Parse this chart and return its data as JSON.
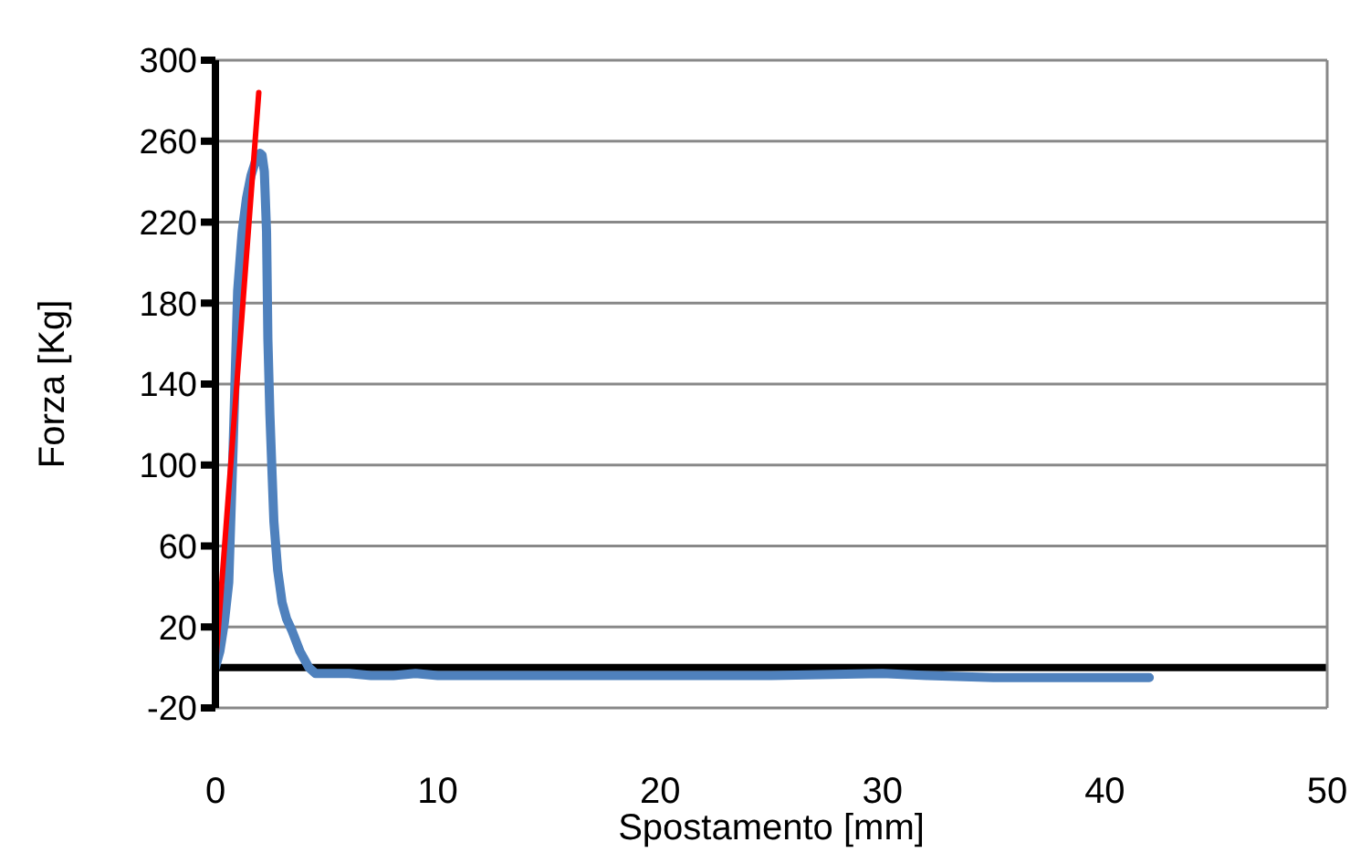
{
  "chart_data": {
    "type": "line",
    "xlabel": "Spostamento [mm]",
    "ylabel": "Forza [Kg]",
    "xlim": [
      0,
      50
    ],
    "xticks": [
      0,
      10,
      20,
      30,
      40,
      50
    ],
    "ylim": [
      -20,
      300
    ],
    "yticks": [
      -20,
      20,
      60,
      100,
      140,
      180,
      220,
      260,
      300
    ],
    "grid": "y",
    "legend": false,
    "marker": "none",
    "ref_lines": [
      {
        "axis": "y",
        "value": 0,
        "color": "#000000"
      }
    ],
    "series": [
      {
        "color": "#4f81bd",
        "x": [
          0,
          0.2,
          0.4,
          0.6,
          0.8,
          1.0,
          1.2,
          1.4,
          1.6,
          1.8,
          2.0,
          2.1,
          2.2,
          2.3,
          2.36,
          2.45,
          2.55,
          2.63,
          2.8,
          3.0,
          3.2,
          3.45,
          3.8,
          4.2,
          4.5,
          5,
          6,
          7,
          8,
          9,
          10,
          12,
          15,
          20,
          25,
          30,
          32,
          35,
          38,
          40,
          42
        ],
        "values": [
          0,
          8,
          22,
          42,
          110,
          186,
          215,
          232,
          243,
          250,
          254,
          253,
          245,
          215,
          162,
          125,
          95,
          72,
          48,
          32,
          24,
          18,
          8,
          0,
          -3,
          -3,
          -3,
          -4,
          -4,
          -3,
          -4,
          -4,
          -4,
          -4,
          -4,
          -3,
          -4,
          -5,
          -5,
          -5,
          -5
        ]
      },
      {
        "color": "#ff0000",
        "x": [
          0,
          1.95
        ],
        "values": [
          0,
          284
        ]
      }
    ]
  }
}
